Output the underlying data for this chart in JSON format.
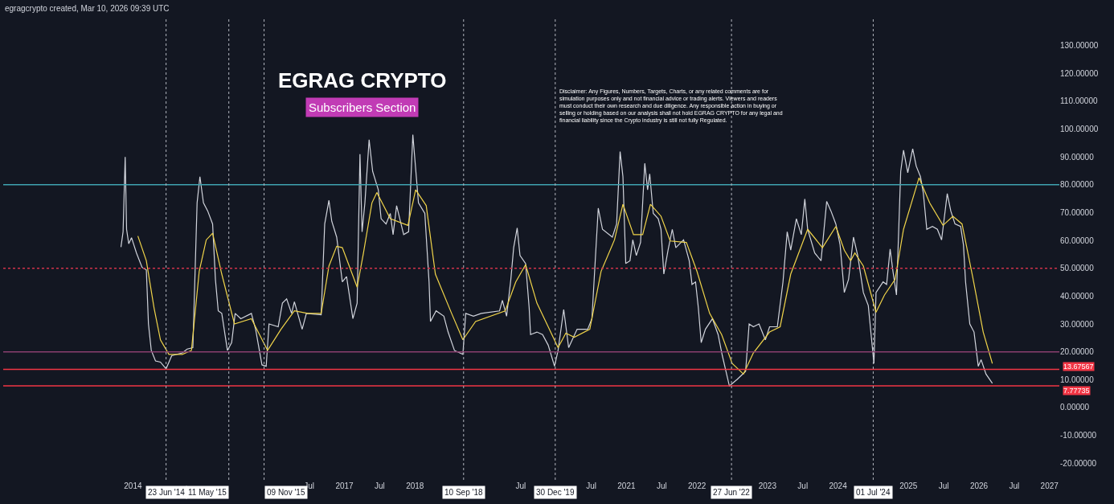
{
  "chart_data": {
    "type": "line",
    "title": "EGRAG CRYPTO",
    "subtitle": "Subscribers Section",
    "annotations": [
      "egragcrypto created, Mar 10, 2026 09:39 UTC",
      "Disclaimer: Any Figures, Numbers, Targets, Charts, or any related comments are for simulation purposes only and not financial advice or trading alerts. Viewers and readers must conduct their own research and due diligence. Any responsible action in buying or selling or holding based on our analysis shall not hold EGRAG CRYPTO for any legal and financial liability since the Crypto industry is still not fully Regulated."
    ],
    "xlim": [
      2012.16,
      2027.14
    ],
    "xticks": [
      2014,
      {
        "value": 2016.5,
        "label": "Jul"
      },
      2017,
      {
        "value": 2017.5,
        "label": "Jul"
      },
      2018,
      {
        "value": 2019.5,
        "label": "Jul"
      },
      {
        "value": 2020.5,
        "label": "Jul"
      },
      2021,
      {
        "value": 2021.5,
        "label": "Jul"
      },
      2022,
      2023,
      {
        "value": 2023.5,
        "label": "Jul"
      },
      2024,
      2025,
      {
        "value": 2025.5,
        "label": "Jul"
      },
      2026,
      {
        "value": 2026.5,
        "label": "Jul"
      },
      2027
    ],
    "ylim": [
      -26,
      140
    ],
    "yticks": [
      {
        "value": -20,
        "label": "-20.00000"
      },
      {
        "value": -10,
        "label": "-10.00000"
      },
      {
        "value": 0,
        "label": "0.00000"
      },
      {
        "value": 10,
        "label": "10.00000"
      },
      {
        "value": 20,
        "label": "20.00000"
      },
      {
        "value": 30,
        "label": "30.00000"
      },
      {
        "value": 40,
        "label": "40.00000"
      },
      {
        "value": 50,
        "label": "50.00000"
      },
      {
        "value": 60,
        "label": "60.00000"
      },
      {
        "value": 70,
        "label": "70.00000"
      },
      {
        "value": 80,
        "label": "80.00000"
      },
      {
        "value": 90,
        "label": "90.00000"
      },
      {
        "value": 100,
        "label": "100.00000"
      },
      {
        "value": 110,
        "label": "110.00000"
      },
      {
        "value": 120,
        "label": "120.00000"
      },
      {
        "value": 130,
        "label": "130.00000"
      }
    ],
    "grid": false,
    "line_style": "solid",
    "series": [
      {
        "color": "#d1d4dc",
        "x": [
          2013.83,
          2013.86,
          2013.89,
          2013.91,
          2013.94,
          2013.98,
          2014.05,
          2014.13,
          2014.19,
          2014.22,
          2014.26,
          2014.32,
          2014.39,
          2014.47,
          2014.55,
          2014.7,
          2014.77,
          2014.85,
          2014.91,
          2014.95,
          2015.0,
          2015.06,
          2015.13,
          2015.17,
          2015.21,
          2015.26,
          2015.34,
          2015.4,
          2015.45,
          2015.53,
          2015.68,
          2015.74,
          2015.83,
          2015.89,
          2015.93,
          2016.06,
          2016.12,
          2016.18,
          2016.25,
          2016.29,
          2016.4,
          2016.46,
          2016.67,
          2016.72,
          2016.78,
          2016.82,
          2016.89,
          2016.97,
          2017.03,
          2017.12,
          2017.18,
          2017.22,
          2017.25,
          2017.29,
          2017.35,
          2017.4,
          2017.48,
          2017.52,
          2017.59,
          2017.65,
          2017.69,
          2017.74,
          2017.84,
          2017.91,
          2017.97,
          2018.05,
          2018.14,
          2018.2,
          2018.22,
          2018.3,
          2018.41,
          2018.47,
          2018.56,
          2018.68,
          2018.72,
          2018.83,
          2018.94,
          2019.2,
          2019.24,
          2019.3,
          2019.36,
          2019.4,
          2019.45,
          2019.49,
          2019.57,
          2019.62,
          2019.64,
          2019.73,
          2019.81,
          2019.89,
          2019.98,
          2020.03,
          2020.11,
          2020.18,
          2020.3,
          2020.45,
          2020.51,
          2020.6,
          2020.66,
          2020.8,
          2020.86,
          2020.91,
          2020.95,
          2020.99,
          2021.05,
          2021.09,
          2021.14,
          2021.2,
          2021.26,
          2021.3,
          2021.33,
          2021.38,
          2021.45,
          2021.49,
          2021.53,
          2021.59,
          2021.65,
          2021.7,
          2021.81,
          2021.89,
          2021.93,
          2021.98,
          2022.02,
          2022.06,
          2022.12,
          2022.22,
          2022.3,
          2022.36,
          2022.46,
          2022.57,
          2022.69,
          2022.74,
          2022.8,
          2022.88,
          2022.97,
          2023.03,
          2023.14,
          2023.22,
          2023.28,
          2023.33,
          2023.41,
          2023.48,
          2023.53,
          2023.57,
          2023.67,
          2023.76,
          2023.84,
          2023.9,
          2023.97,
          2024.03,
          2024.09,
          2024.15,
          2024.22,
          2024.28,
          2024.36,
          2024.43,
          2024.51,
          2024.54,
          2024.64,
          2024.69,
          2024.74,
          2024.78,
          2024.83,
          2024.89,
          2024.93,
          2024.99,
          2025.06,
          2025.11,
          2025.17,
          2025.21,
          2025.26,
          2025.34,
          2025.41,
          2025.47,
          2025.55,
          2025.6,
          2025.66,
          2025.74,
          2025.78,
          2025.81,
          2025.87,
          2025.93,
          2025.99,
          2026.03,
          2026.1,
          2026.19
        ],
        "values": [
          57.6,
          63.1,
          90.0,
          64.0,
          58.8,
          61.0,
          55.5,
          50.3,
          49.4,
          30.0,
          20.5,
          16.7,
          16.3,
          13.9,
          18.6,
          19.6,
          21.0,
          21.5,
          73.5,
          82.9,
          73.5,
          70.6,
          65.9,
          46.0,
          34.7,
          33.8,
          20.5,
          23.3,
          33.8,
          31.9,
          33.8,
          28.1,
          15.3,
          14.8,
          30.0,
          29.0,
          37.5,
          39.0,
          33.8,
          38.0,
          28.1,
          33.8,
          33.3,
          65.9,
          74.4,
          66.9,
          61.2,
          45.1,
          47.0,
          31.9,
          37.5,
          91.0,
          63.1,
          73.5,
          96.2,
          84.8,
          78.2,
          67.8,
          65.9,
          69.7,
          62.1,
          72.5,
          62.1,
          63.1,
          98.0,
          73.5,
          69.7,
          45.1,
          30.9,
          34.7,
          32.8,
          27.1,
          20.5,
          19.1,
          33.8,
          32.8,
          33.8,
          34.7,
          38.5,
          32.8,
          46.0,
          57.4,
          64.5,
          54.6,
          51.7,
          35.7,
          26.2,
          27.1,
          26.2,
          22.4,
          14.8,
          20.5,
          35.2,
          21.5,
          28.1,
          28.1,
          31.9,
          71.6,
          64.0,
          61.2,
          65.9,
          91.9,
          82.9,
          51.7,
          52.7,
          60.2,
          54.6,
          59.3,
          87.7,
          78.2,
          83.9,
          69.7,
          67.8,
          64.0,
          47.9,
          56.5,
          64.0,
          57.4,
          60.2,
          52.7,
          44.2,
          45.1,
          35.7,
          23.3,
          28.1,
          31.9,
          26.2,
          18.6,
          7.7,
          10.1,
          13.0,
          30.0,
          29.0,
          30.0,
          24.3,
          29.0,
          29.0,
          45.1,
          63.1,
          56.5,
          67.8,
          62.1,
          74.9,
          64.0,
          55.5,
          52.7,
          74.0,
          70.6,
          65.9,
          58.4,
          41.3,
          46.0,
          61.2,
          54.6,
          41.3,
          36.6,
          15.8,
          41.3,
          45.1,
          44.2,
          56.9,
          48.9,
          40.4,
          84.8,
          92.4,
          84.3,
          92.9,
          86.7,
          82.9,
          77.2,
          64.0,
          65.0,
          64.0,
          60.2,
          76.8,
          70.6,
          65.9,
          65.0,
          58.4,
          45.1,
          30.0,
          27.1,
          14.8,
          17.2,
          12.0,
          8.7
        ]
      },
      {
        "color": "#f0d44a",
        "x": [
          2014.07,
          2014.19,
          2014.3,
          2014.39,
          2014.51,
          2014.7,
          2014.83,
          2014.94,
          2015.04,
          2015.13,
          2015.26,
          2015.44,
          2015.68,
          2015.91,
          2016.1,
          2016.29,
          2016.48,
          2016.67,
          2016.78,
          2016.89,
          2016.97,
          2017.18,
          2017.27,
          2017.39,
          2017.46,
          2017.65,
          2017.9,
          2018.01,
          2018.16,
          2018.29,
          2018.52,
          2018.68,
          2018.86,
          2019.28,
          2019.43,
          2019.57,
          2019.73,
          2019.89,
          2020.03,
          2020.14,
          2020.26,
          2020.48,
          2020.64,
          2020.83,
          2020.95,
          2021.1,
          2021.23,
          2021.34,
          2021.49,
          2021.62,
          2021.85,
          2022.0,
          2022.18,
          2022.35,
          2022.5,
          2022.66,
          2022.8,
          2023.03,
          2023.18,
          2023.33,
          2023.57,
          2023.78,
          2023.97,
          2024.09,
          2024.18,
          2024.24,
          2024.36,
          2024.54,
          2024.66,
          2024.81,
          2024.93,
          2025.15,
          2025.3,
          2025.49,
          2025.63,
          2025.76,
          2025.91,
          2026.06,
          2026.19
        ],
        "values": [
          61.6,
          52.7,
          35.7,
          24.3,
          19.1,
          19.1,
          20.5,
          48.9,
          60.2,
          62.6,
          47.9,
          30.0,
          31.9,
          20.5,
          28.1,
          34.7,
          33.8,
          33.8,
          50.8,
          57.9,
          57.4,
          43.2,
          55.5,
          73.5,
          77.2,
          67.8,
          65.4,
          78.2,
          72.5,
          47.9,
          33.8,
          24.3,
          30.9,
          34.7,
          45.1,
          51.3,
          37.5,
          29.0,
          21.5,
          26.7,
          25.2,
          28.1,
          48.9,
          60.2,
          73.0,
          62.1,
          62.1,
          73.0,
          68.7,
          59.8,
          59.3,
          48.9,
          33.8,
          26.2,
          15.8,
          12.0,
          19.6,
          27.1,
          29.0,
          47.9,
          64.0,
          57.4,
          65.0,
          56.5,
          52.7,
          55.5,
          50.8,
          34.2,
          40.4,
          46.0,
          64.0,
          82.5,
          73.5,
          65.4,
          68.7,
          65.9,
          47.0,
          27.1,
          15.8
        ]
      }
    ],
    "ref_lines": [
      {
        "axis": "y",
        "value": 80,
        "color": "#3fa3b0",
        "line_style": "solid"
      },
      {
        "axis": "y",
        "value": 50,
        "color": "#d0324a",
        "line_style": "dotted"
      },
      {
        "axis": "y",
        "value": 20,
        "color": "#8a3f6e",
        "line_style": "solid"
      },
      {
        "axis": "y",
        "value": 13.67567,
        "label": "13.67567",
        "color": "#f23645",
        "line_style": "solid"
      },
      {
        "axis": "y",
        "value": 7.77735,
        "label": "7.77735",
        "color": "#f23645",
        "line_style": "solid"
      },
      {
        "axis": "x",
        "value": 2014.47,
        "label": "23 Jun '14",
        "color": "#b2b5be",
        "line_style": "dotted"
      },
      {
        "axis": "x",
        "value": 2015.36,
        "label": "11 May '15",
        "color": "#b2b5be",
        "line_style": "dotted"
      },
      {
        "axis": "x",
        "value": 2015.86,
        "label": "09 Nov '15",
        "color": "#b2b5be",
        "line_style": "dotted"
      },
      {
        "axis": "x",
        "value": 2018.69,
        "label": "10 Sep '18",
        "color": "#b2b5be",
        "line_style": "dotted"
      },
      {
        "axis": "x",
        "value": 2019.99,
        "label": "30 Dec '19",
        "color": "#b2b5be",
        "line_style": "dotted"
      },
      {
        "axis": "x",
        "value": 2022.49,
        "label": "27 Jun '22",
        "color": "#b2b5be",
        "line_style": "dotted"
      },
      {
        "axis": "x",
        "value": 2024.5,
        "label": "01 Jul '24",
        "color": "#b2b5be",
        "line_style": "dotted"
      }
    ]
  }
}
